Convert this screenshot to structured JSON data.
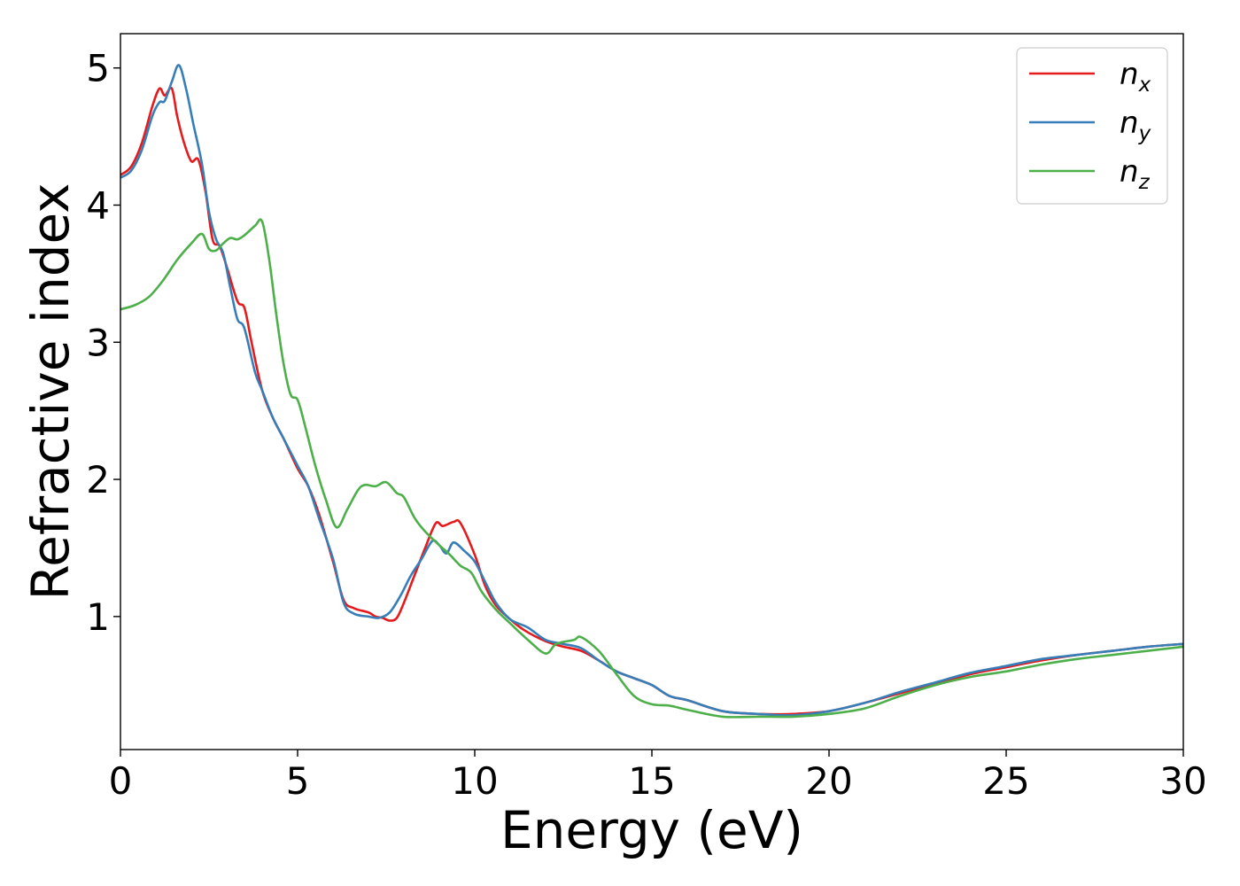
{
  "chart_data": {
    "type": "line",
    "xlabel": "Energy (eV)",
    "ylabel": "Refractive index",
    "xlim": [
      0,
      30
    ],
    "ylim": [
      0.03,
      5.25
    ],
    "xticks": [
      "0",
      "5",
      "10",
      "15",
      "20",
      "25",
      "30"
    ],
    "yticks": [
      "1",
      "2",
      "3",
      "4",
      "5"
    ],
    "grid": false,
    "legend_position": "top-right",
    "series": [
      {
        "name": "n_x",
        "symbol": "n",
        "subscript": "x",
        "color": "#e41a1c",
        "x": [
          0,
          0.3,
          0.6,
          0.9,
          1.1,
          1.25,
          1.45,
          1.6,
          1.8,
          2.0,
          2.2,
          2.4,
          2.6,
          2.8,
          3.0,
          3.3,
          3.5,
          3.7,
          4.0,
          4.3,
          4.6,
          5.0,
          5.3,
          5.6,
          6.0,
          6.3,
          6.6,
          7.0,
          7.2,
          7.4,
          7.6,
          7.8,
          8.0,
          8.3,
          8.6,
          8.9,
          9.1,
          9.4,
          9.6,
          10.0,
          10.3,
          10.6,
          11.0,
          11.4,
          12.0,
          12.5,
          13.0,
          13.5,
          14.0,
          14.5,
          15.0,
          15.5,
          16.0,
          17.0,
          18.0,
          19.0,
          20.0,
          21.0,
          22.0,
          23.0,
          24.0,
          25.0,
          26.0,
          27.0,
          28.0,
          29.0,
          30.0
        ],
        "y": [
          4.22,
          4.28,
          4.45,
          4.72,
          4.85,
          4.8,
          4.85,
          4.65,
          4.45,
          4.32,
          4.33,
          4.1,
          3.75,
          3.7,
          3.55,
          3.3,
          3.25,
          3.0,
          2.65,
          2.45,
          2.3,
          2.08,
          1.95,
          1.75,
          1.4,
          1.12,
          1.06,
          1.03,
          1.0,
          0.99,
          0.97,
          0.99,
          1.1,
          1.3,
          1.5,
          1.68,
          1.66,
          1.69,
          1.68,
          1.45,
          1.22,
          1.08,
          0.98,
          0.9,
          0.82,
          0.78,
          0.75,
          0.68,
          0.6,
          0.55,
          0.5,
          0.42,
          0.39,
          0.31,
          0.29,
          0.29,
          0.31,
          0.37,
          0.44,
          0.51,
          0.58,
          0.63,
          0.68,
          0.72,
          0.75,
          0.78,
          0.8
        ]
      },
      {
        "name": "n_y",
        "symbol": "n",
        "subscript": "y",
        "color": "#377eb8",
        "x": [
          0,
          0.3,
          0.6,
          0.9,
          1.1,
          1.25,
          1.45,
          1.65,
          1.85,
          2.05,
          2.3,
          2.5,
          2.7,
          2.9,
          3.1,
          3.3,
          3.5,
          3.8,
          4.0,
          4.3,
          4.6,
          5.0,
          5.3,
          5.6,
          6.0,
          6.3,
          6.6,
          7.0,
          7.3,
          7.6,
          7.9,
          8.2,
          8.5,
          8.8,
          9.0,
          9.2,
          9.4,
          9.7,
          10.0,
          10.3,
          10.6,
          11.0,
          11.5,
          12.0,
          12.5,
          13.0,
          13.5,
          14.0,
          14.5,
          15.0,
          15.5,
          16.0,
          17.0,
          18.0,
          19.0,
          20.0,
          21.0,
          22.0,
          23.0,
          24.0,
          25.0,
          26.0,
          27.0,
          28.0,
          29.0,
          30.0
        ],
        "y": [
          4.2,
          4.25,
          4.4,
          4.65,
          4.75,
          4.76,
          4.9,
          5.02,
          4.85,
          4.6,
          4.3,
          3.95,
          3.75,
          3.65,
          3.4,
          3.17,
          3.1,
          2.78,
          2.65,
          2.45,
          2.3,
          2.1,
          1.95,
          1.72,
          1.42,
          1.1,
          1.02,
          1.0,
          0.99,
          1.03,
          1.15,
          1.3,
          1.42,
          1.55,
          1.52,
          1.46,
          1.54,
          1.48,
          1.4,
          1.25,
          1.1,
          0.98,
          0.92,
          0.83,
          0.8,
          0.77,
          0.68,
          0.6,
          0.55,
          0.5,
          0.42,
          0.39,
          0.31,
          0.29,
          0.28,
          0.31,
          0.37,
          0.45,
          0.52,
          0.59,
          0.64,
          0.69,
          0.72,
          0.75,
          0.78,
          0.8
        ]
      },
      {
        "name": "n_z",
        "symbol": "n",
        "subscript": "z",
        "color": "#4daf4a",
        "x": [
          0,
          0.4,
          0.8,
          1.2,
          1.6,
          2.0,
          2.3,
          2.5,
          2.7,
          2.9,
          3.1,
          3.3,
          3.5,
          3.8,
          4.0,
          4.2,
          4.4,
          4.6,
          4.8,
          5.0,
          5.2,
          5.5,
          5.8,
          6.1,
          6.4,
          6.7,
          6.9,
          7.2,
          7.5,
          7.8,
          8.0,
          8.3,
          8.6,
          9.0,
          9.3,
          9.6,
          9.9,
          10.2,
          10.6,
          11.0,
          11.5,
          12.0,
          12.3,
          12.8,
          13.0,
          13.5,
          14.0,
          14.5,
          15.0,
          15.5,
          16.0,
          17.0,
          18.0,
          19.0,
          20.0,
          21.0,
          22.0,
          23.0,
          24.0,
          25.0,
          26.0,
          27.0,
          28.0,
          29.0,
          30.0
        ],
        "y": [
          3.24,
          3.27,
          3.33,
          3.45,
          3.6,
          3.72,
          3.79,
          3.68,
          3.67,
          3.72,
          3.76,
          3.75,
          3.78,
          3.85,
          3.88,
          3.6,
          3.2,
          2.85,
          2.62,
          2.58,
          2.4,
          2.1,
          1.85,
          1.65,
          1.78,
          1.92,
          1.96,
          1.95,
          1.98,
          1.9,
          1.87,
          1.72,
          1.62,
          1.52,
          1.45,
          1.37,
          1.32,
          1.18,
          1.05,
          0.95,
          0.83,
          0.73,
          0.8,
          0.83,
          0.85,
          0.75,
          0.58,
          0.42,
          0.36,
          0.35,
          0.32,
          0.27,
          0.27,
          0.27,
          0.29,
          0.33,
          0.42,
          0.5,
          0.56,
          0.6,
          0.65,
          0.69,
          0.72,
          0.75,
          0.78
        ]
      }
    ]
  }
}
